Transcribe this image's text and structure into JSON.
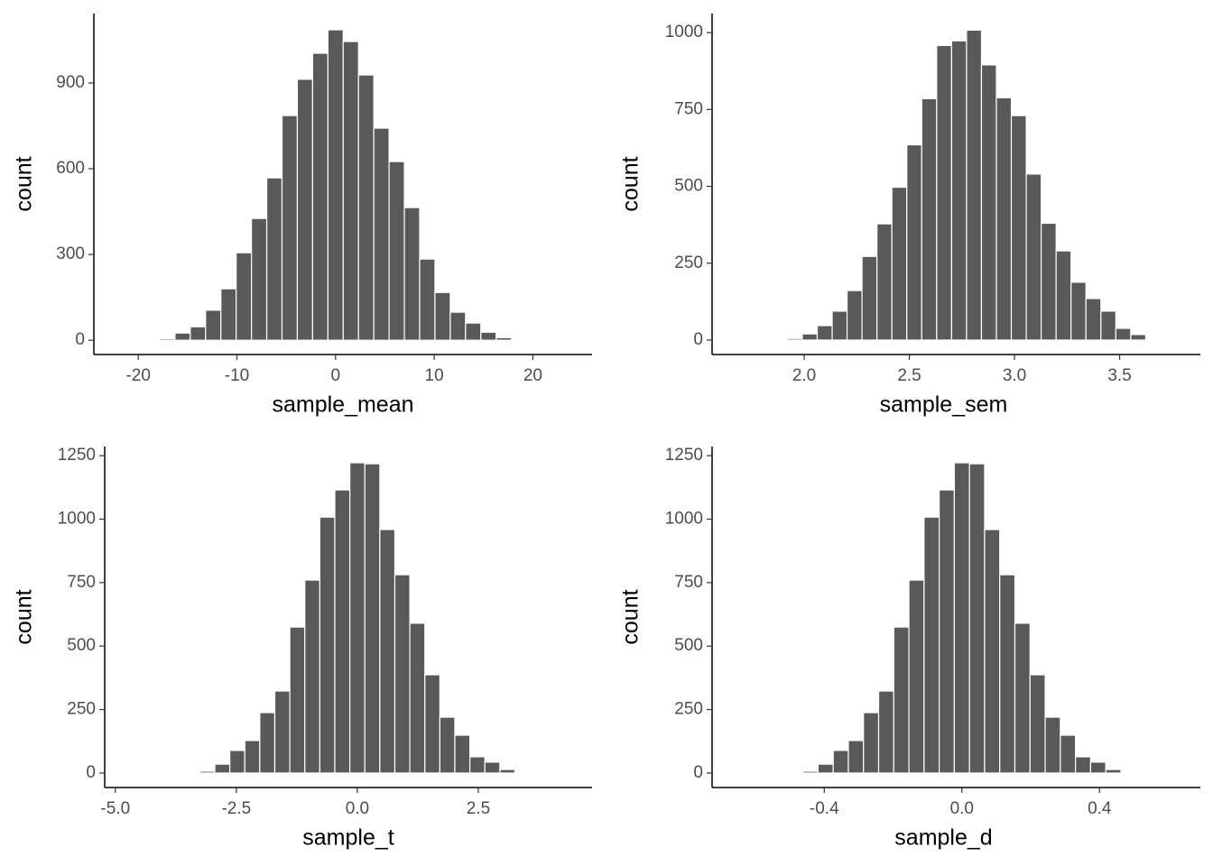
{
  "chart_data": [
    {
      "type": "histogram",
      "x_label": "sample_mean",
      "y_label": "count",
      "bins": [
        -17.825,
        -16.275,
        -14.725,
        -13.175,
        -11.625,
        -10.075,
        -8.525,
        -6.975,
        -5.425,
        -3.875,
        -2.325,
        -0.775,
        0.775,
        2.325,
        3.875,
        5.425,
        6.975,
        8.525,
        10.075,
        11.625,
        13.175,
        14.725,
        16.275,
        17.825
      ],
      "values": [
        5,
        25,
        47,
        105,
        180,
        306,
        426,
        568,
        786,
        913,
        1004,
        1086,
        1045,
        928,
        742,
        625,
        464,
        284,
        167,
        98,
        60,
        28,
        9
      ],
      "color": "#595959",
      "xlim": [
        -24.5,
        26.0
      ],
      "ylim": [
        -50,
        1143
      ],
      "xticks": [
        -20,
        -10,
        0,
        10,
        20
      ],
      "yticks": [
        0,
        300,
        600,
        900
      ]
    },
    {
      "type": "histogram",
      "x_label": "sample_sem",
      "y_label": "count",
      "bins": [
        1.92,
        1.991,
        2.062,
        2.133,
        2.204,
        2.275,
        2.346,
        2.417,
        2.488,
        2.559,
        2.63,
        2.701,
        2.772,
        2.843,
        2.914,
        2.985,
        3.056,
        3.127,
        3.198,
        3.269,
        3.34,
        3.411,
        3.482,
        3.553,
        3.624
      ],
      "values": [
        5,
        20,
        47,
        94,
        161,
        272,
        378,
        497,
        635,
        785,
        958,
        973,
        1008,
        895,
        788,
        730,
        540,
        380,
        290,
        188,
        135,
        94,
        38,
        18
      ],
      "color": "#595959",
      "xlim": [
        1.562,
        3.884
      ],
      "ylim": [
        -47,
        1062
      ],
      "xticks": [
        {
          "value": 2,
          "label": "2.0"
        },
        2.5,
        {
          "value": 3,
          "label": "3.0"
        },
        3.5
      ],
      "yticks": [
        0,
        250,
        500,
        750,
        1000
      ]
    },
    {
      "type": "histogram",
      "x_label": "sample_t",
      "y_label": "count",
      "bins": [
        -3.255,
        -2.945,
        -2.635,
        -2.325,
        -2.015,
        -1.705,
        -1.395,
        -1.085,
        -0.775,
        -0.465,
        -0.155,
        0.155,
        0.465,
        0.775,
        1.085,
        1.395,
        1.705,
        2.015,
        2.325,
        2.635,
        2.945,
        3.255
      ],
      "values": [
        7,
        35,
        89,
        128,
        238,
        323,
        575,
        760,
        1008,
        1115,
        1222,
        1218,
        959,
        781,
        590,
        387,
        220,
        149,
        64,
        43,
        14
      ],
      "color": "#595959",
      "xlim": [
        -5.22,
        4.85
      ],
      "ylim": [
        -57,
        1286
      ],
      "xticks": [
        {
          "value": -5,
          "label": "-5.0"
        },
        -2.5,
        {
          "value": 0,
          "label": "0.0"
        },
        2.5
      ],
      "yticks": [
        0,
        250,
        500,
        750,
        1000,
        1250
      ]
    },
    {
      "type": "histogram",
      "x_label": "sample_d",
      "y_label": "count",
      "bins": [
        -0.462,
        -0.418,
        -0.374,
        -0.33,
        -0.286,
        -0.242,
        -0.198,
        -0.154,
        -0.11,
        -0.066,
        -0.022,
        0.022,
        0.066,
        0.11,
        0.154,
        0.198,
        0.242,
        0.286,
        0.33,
        0.374,
        0.418,
        0.462
      ],
      "values": [
        7,
        35,
        89,
        128,
        238,
        323,
        575,
        760,
        1008,
        1115,
        1222,
        1218,
        959,
        781,
        590,
        387,
        220,
        149,
        64,
        43,
        14
      ],
      "color": "#595959",
      "xlim": [
        -0.726,
        0.693
      ],
      "ylim": [
        -57,
        1286
      ],
      "xticks": [
        -0.4,
        {
          "value": 0,
          "label": "0.0"
        },
        0.4
      ],
      "yticks": [
        0,
        250,
        500,
        750,
        1000,
        1250
      ]
    }
  ]
}
